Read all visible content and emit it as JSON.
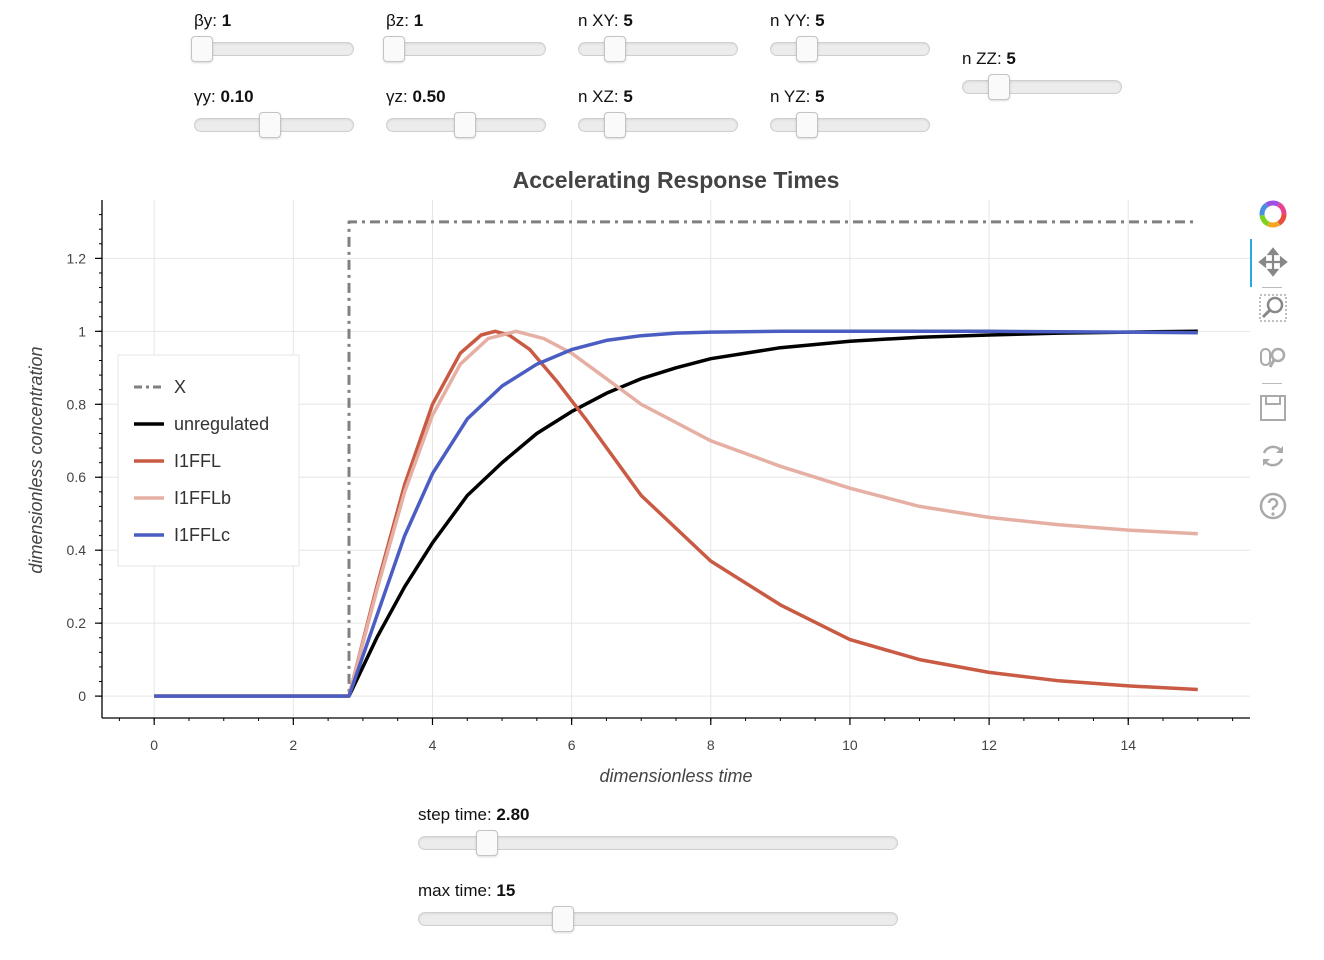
{
  "sliders": [
    {
      "id": "beta-y",
      "label": "βy: ",
      "value": "1",
      "fraction": 0.04
    },
    {
      "id": "beta-z",
      "label": "βz: ",
      "value": "1",
      "fraction": 0.04
    },
    {
      "id": "n-xy",
      "label": "n XY: ",
      "value": "5",
      "fraction": 0.22
    },
    {
      "id": "n-yy",
      "label": "n YY: ",
      "value": "5",
      "fraction": 0.22
    },
    {
      "id": "gamma-y",
      "label": "γy: ",
      "value": "0.10",
      "fraction": 0.47
    },
    {
      "id": "gamma-z",
      "label": "γz: ",
      "value": "0.50",
      "fraction": 0.49
    },
    {
      "id": "n-xz",
      "label": "n XZ: ",
      "value": "5",
      "fraction": 0.22
    },
    {
      "id": "n-yz",
      "label": "n YZ: ",
      "value": "5",
      "fraction": 0.22
    },
    {
      "id": "n-zz",
      "label": "n ZZ: ",
      "value": "5",
      "fraction": 0.22
    },
    {
      "id": "step-time",
      "label": "step time: ",
      "value": "2.80",
      "fraction": 0.14
    },
    {
      "id": "max-time",
      "label": "max time: ",
      "value": "15",
      "fraction": 0.3
    }
  ],
  "toolbar": {
    "tools": [
      "bokeh-logo-icon",
      "pan-icon",
      "box-zoom-icon",
      "wheel-zoom-icon",
      "save-icon",
      "reset-icon",
      "help-icon"
    ]
  },
  "chart_data": {
    "type": "line",
    "title": "Accelerating Response Times",
    "xlabel": "dimensionless time",
    "ylabel": "dimensionless concentration",
    "xlim": [
      -0.75,
      15.75
    ],
    "ylim": [
      -0.06,
      1.36
    ],
    "xticks": [
      0,
      2,
      4,
      6,
      8,
      10,
      12,
      14
    ],
    "xtick_labels": [
      "0",
      "2",
      "4",
      "6",
      "8",
      "10",
      "12",
      "14"
    ],
    "yticks": [
      0,
      0.2,
      0.4,
      0.6,
      0.8,
      1.0,
      1.2
    ],
    "ytick_labels": [
      "0",
      "0.2",
      "0.4",
      "0.6",
      "0.8",
      "1",
      "1.2"
    ],
    "grid": true,
    "legend": "left",
    "series": [
      {
        "name": "X",
        "color": "#808080",
        "style": "dashdot",
        "x": [
          0,
          2.8,
          2.8,
          15
        ],
        "y": [
          0,
          0,
          1.3,
          1.3
        ]
      },
      {
        "name": "unregulated",
        "color": "#000000",
        "style": "solid",
        "x": [
          0,
          2.8,
          3.2,
          3.6,
          4,
          4.5,
          5,
          5.5,
          6,
          6.5,
          7,
          7.5,
          8,
          9,
          10,
          11,
          12,
          13,
          14,
          15
        ],
        "y": [
          0,
          0,
          0.16,
          0.3,
          0.42,
          0.55,
          0.64,
          0.72,
          0.78,
          0.83,
          0.87,
          0.9,
          0.925,
          0.955,
          0.973,
          0.984,
          0.99,
          0.995,
          0.998,
          1.0
        ]
      },
      {
        "name": "I1FFL",
        "color": "#c95a43",
        "style": "solid",
        "x": [
          0,
          2.8,
          3.2,
          3.6,
          4,
          4.4,
          4.7,
          4.9,
          5.1,
          5.4,
          5.8,
          6.2,
          7,
          8,
          9,
          10,
          11,
          12,
          13,
          14,
          15
        ],
        "y": [
          0,
          0,
          0.3,
          0.58,
          0.8,
          0.94,
          0.99,
          1.0,
          0.99,
          0.95,
          0.86,
          0.76,
          0.55,
          0.37,
          0.25,
          0.155,
          0.1,
          0.065,
          0.042,
          0.028,
          0.018
        ]
      },
      {
        "name": "I1FFLb",
        "color": "#e5b0a3",
        "style": "solid",
        "x": [
          0,
          2.8,
          3.2,
          3.6,
          4,
          4.4,
          4.8,
          5.2,
          5.6,
          6,
          6.5,
          7,
          7.5,
          8,
          9,
          10,
          11,
          12,
          13,
          14,
          15
        ],
        "y": [
          0,
          0,
          0.29,
          0.56,
          0.77,
          0.91,
          0.98,
          1.0,
          0.98,
          0.94,
          0.87,
          0.8,
          0.75,
          0.7,
          0.63,
          0.57,
          0.52,
          0.49,
          0.47,
          0.455,
          0.445
        ]
      },
      {
        "name": "I1FFLc",
        "color": "#4b5dc2",
        "style": "solid",
        "x": [
          0,
          2.8,
          3.2,
          3.6,
          4,
          4.5,
          5,
          5.5,
          6,
          6.5,
          7,
          7.5,
          8,
          9,
          10,
          11,
          12,
          13,
          14,
          15
        ],
        "y": [
          0,
          0,
          0.22,
          0.44,
          0.61,
          0.76,
          0.85,
          0.91,
          0.95,
          0.975,
          0.988,
          0.995,
          0.998,
          1.0,
          1.0,
          1.0,
          1.0,
          0.999,
          0.998,
          0.996
        ]
      }
    ]
  }
}
